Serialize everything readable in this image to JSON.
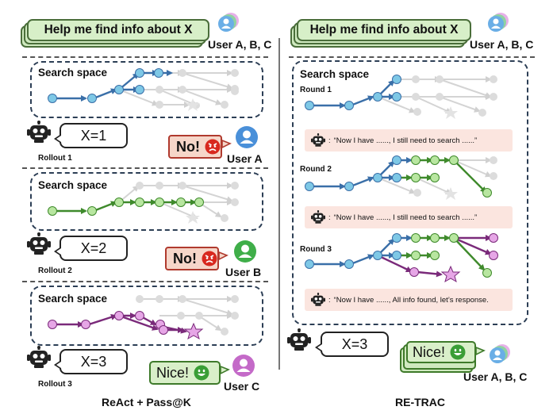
{
  "query": "Help me find info about X",
  "users_all": "User A, B, C",
  "search_space_label": "Search space",
  "left": {
    "rollouts": [
      {
        "x_text": "X=1",
        "rollout_label": "Rollout 1",
        "reply": "No!",
        "user_label": "User A"
      },
      {
        "x_text": "X=2",
        "rollout_label": "Rollout 2",
        "reply": "No!",
        "user_label": "User B"
      },
      {
        "x_text": "X=3",
        "rollout_label": "Rollout 3",
        "reply": "Nice!",
        "user_label": "User C"
      }
    ],
    "caption": "ReAct + Pass@K"
  },
  "right": {
    "rounds": [
      {
        "label": "Round 1",
        "thought": "“Now I have ......,  I still need to search ......”"
      },
      {
        "label": "Round 2",
        "thought": "“Now I have ......,  I still need to search ......”"
      },
      {
        "label": "Round 3",
        "thought": "“Now I have ......,  All info found, let’s response."
      }
    ],
    "x_text": "X=3",
    "reply": "Nice!",
    "users_label": "User A, B, C",
    "caption": "RE-TRAC"
  },
  "colors": {
    "blue": "#3a6fa8",
    "blue_node": "#7ec8e6",
    "green": "#3f8a2c",
    "green_node": "#b8e6a0",
    "purple": "#7a2a7a",
    "purple_node": "#e6a6e6",
    "gray": "#d6d6d6",
    "user_a": "#4a90d9",
    "user_b": "#3fae49",
    "user_c": "#c46ac8"
  },
  "icons": [
    "robot-icon",
    "user-icon",
    "angry-face-icon",
    "smile-face-icon",
    "user-group-icon"
  ]
}
